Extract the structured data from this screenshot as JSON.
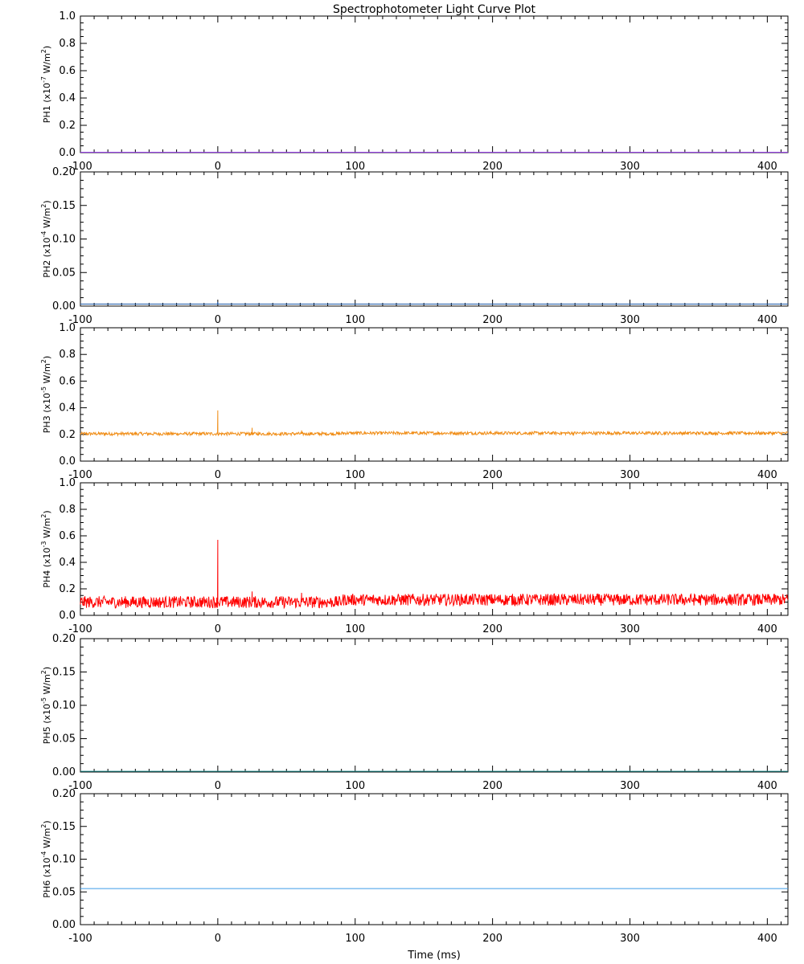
{
  "chart_data": {
    "type": "line",
    "title": "Spectrophotometer Light Curve Plot",
    "xlabel": "Time (ms)",
    "xlim": [
      -100,
      415
    ],
    "xticks": [
      "-100",
      "0",
      "100",
      "200",
      "300",
      "400"
    ],
    "panels": [
      {
        "name": "PH1",
        "ylabel_prefix": "PH1",
        "ylabel_unit": "(x10",
        "ylabel_exp": "-7",
        "ylabel_suffix": " W/m",
        "ylim": [
          0,
          1.0
        ],
        "yticks": [
          "0.0",
          "0.2",
          "0.4",
          "0.6",
          "0.8",
          "1.0"
        ],
        "color": "#8a2be2",
        "series": {
          "baseline": 0.002,
          "noise": 0.0,
          "spikes": []
        }
      },
      {
        "name": "PH2",
        "ylabel_prefix": "PH2",
        "ylabel_unit": "(x10",
        "ylabel_exp": "-4",
        "ylabel_suffix": " W/m",
        "ylim": [
          0,
          0.2
        ],
        "yticks": [
          "0.00",
          "0.05",
          "0.10",
          "0.15",
          "0.20"
        ],
        "color": "#1e5aa8",
        "series": {
          "baseline": 0.003,
          "noise": 0.0,
          "spikes": [
            {
              "t": 0,
              "v": 0.006
            }
          ]
        }
      },
      {
        "name": "PH3",
        "ylabel_prefix": "PH3",
        "ylabel_unit": "(x10",
        "ylabel_exp": "-5",
        "ylabel_suffix": " W/m",
        "ylim": [
          0,
          1.0
        ],
        "yticks": [
          "0.0",
          "0.2",
          "0.4",
          "0.6",
          "0.8",
          "1.0"
        ],
        "color": "#f08c14",
        "series": {
          "baseline": 0.205,
          "noise": 0.012,
          "spikes": [
            {
              "t": 0,
              "v": 0.38
            },
            {
              "t": 25,
              "v": 0.25
            },
            {
              "t": 61,
              "v": 0.23
            }
          ]
        }
      },
      {
        "name": "PH4",
        "ylabel_prefix": "PH4",
        "ylabel_unit": "(x10",
        "ylabel_exp": "-3",
        "ylabel_suffix": " W/m",
        "ylim": [
          0,
          1.0
        ],
        "yticks": [
          "0.0",
          "0.2",
          "0.4",
          "0.6",
          "0.8",
          "1.0"
        ],
        "color": "#ff0000",
        "series": {
          "baseline": 0.1,
          "noise": 0.045,
          "spikes": [
            {
              "t": 0,
              "v": 0.57
            },
            {
              "t": 25,
              "v": 0.18
            },
            {
              "t": 61,
              "v": 0.17
            }
          ]
        }
      },
      {
        "name": "PH5",
        "ylabel_prefix": "PH5",
        "ylabel_unit": "(x10",
        "ylabel_exp": "-5",
        "ylabel_suffix": " W/m",
        "ylim": [
          0,
          0.2
        ],
        "yticks": [
          "0.00",
          "0.05",
          "0.10",
          "0.15",
          "0.20"
        ],
        "color": "#1e8c8c",
        "series": {
          "baseline": 0.001,
          "noise": 0.0,
          "spikes": []
        }
      },
      {
        "name": "PH6",
        "ylabel_prefix": "PH6",
        "ylabel_unit": "(x10",
        "ylabel_exp": "-4",
        "ylabel_suffix": " W/m",
        "ylim": [
          0,
          0.2
        ],
        "yticks": [
          "0.00",
          "0.05",
          "0.10",
          "0.15",
          "0.20"
        ],
        "color": "#3c9be6",
        "series": {
          "baseline": 0.055,
          "noise": 0.0,
          "spikes": []
        }
      }
    ]
  }
}
